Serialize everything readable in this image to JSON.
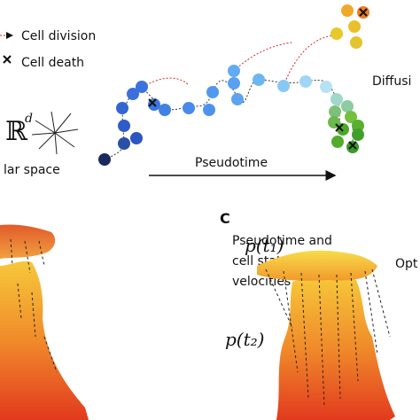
{
  "legend": {
    "division": "Cell division",
    "death": "Cell death"
  },
  "space": {
    "symbol": "ℝ",
    "superscript": "d",
    "label": "lar space"
  },
  "axis": {
    "label": "Pseudotime"
  },
  "right_label": "Diffusi",
  "panel_b": {
    "caption": [
      "Pseudotime and",
      "cell state (average)",
      "velocities"
    ]
  },
  "panel_c": {
    "letter": "C",
    "top_label": "p(t₁)",
    "bottom_label": "p(t₂)",
    "right_label": "Opt"
  }
}
